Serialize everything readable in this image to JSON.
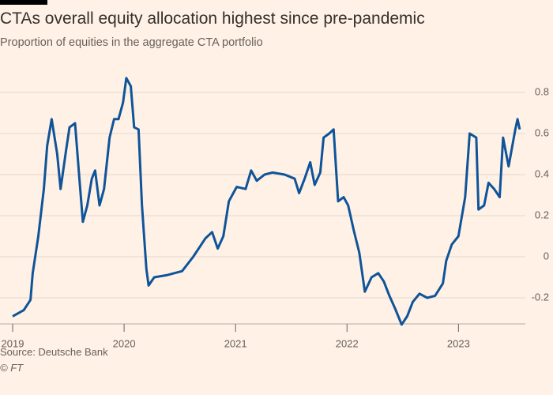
{
  "chart_data": {
    "type": "line",
    "title": "CTAs overall equity allocation highest since pre-pandemic",
    "subtitle": "Proportion of equities in the aggregate CTA portfolio",
    "source": "Source: Deutsche Bank",
    "credit": "© FT",
    "color": "#0f5499",
    "grid": true,
    "x": [
      2019.0,
      2019.1,
      2019.16,
      2019.18,
      2019.23,
      2019.28,
      2019.31,
      2019.35,
      2019.4,
      2019.43,
      2019.48,
      2019.51,
      2019.56,
      2019.6,
      2019.63,
      2019.67,
      2019.71,
      2019.74,
      2019.78,
      2019.82,
      2019.87,
      2019.91,
      2019.95,
      2019.99,
      2020.02,
      2020.06,
      2020.09,
      2020.13,
      2020.16,
      2020.2,
      2020.22,
      2020.27,
      2020.38,
      2020.52,
      2020.62,
      2020.73,
      2020.79,
      2020.84,
      2020.89,
      2020.94,
      2021.01,
      2021.09,
      2021.14,
      2021.19,
      2021.26,
      2021.33,
      2021.44,
      2021.53,
      2021.57,
      2021.62,
      2021.67,
      2021.71,
      2021.76,
      2021.79,
      2021.84,
      2021.88,
      2021.9,
      2021.92,
      2021.97,
      2022.01,
      2022.06,
      2022.11,
      2022.16,
      2022.22,
      2022.28,
      2022.33,
      2022.38,
      2022.43,
      2022.49,
      2022.54,
      2022.59,
      2022.65,
      2022.72,
      2022.79,
      2022.86,
      2022.89,
      2022.94,
      2023.0,
      2023.06,
      2023.1,
      2023.13,
      2023.16,
      2023.18,
      2023.23,
      2023.27,
      2023.32,
      2023.37,
      2023.4,
      2023.45,
      2023.51,
      2023.53,
      2023.55
    ],
    "values": [
      -0.29,
      -0.26,
      -0.21,
      -0.08,
      0.1,
      0.33,
      0.54,
      0.67,
      0.5,
      0.33,
      0.52,
      0.63,
      0.65,
      0.37,
      0.17,
      0.25,
      0.38,
      0.42,
      0.25,
      0.33,
      0.58,
      0.67,
      0.67,
      0.75,
      0.87,
      0.83,
      0.63,
      0.62,
      0.25,
      -0.06,
      -0.14,
      -0.1,
      -0.09,
      -0.07,
      0.0,
      0.09,
      0.12,
      0.04,
      0.1,
      0.27,
      0.34,
      0.33,
      0.42,
      0.37,
      0.4,
      0.41,
      0.4,
      0.38,
      0.31,
      0.38,
      0.46,
      0.35,
      0.41,
      0.58,
      0.6,
      0.62,
      0.44,
      0.27,
      0.29,
      0.25,
      0.13,
      0.02,
      -0.17,
      -0.1,
      -0.08,
      -0.12,
      -0.19,
      -0.25,
      -0.33,
      -0.29,
      -0.22,
      -0.18,
      -0.2,
      -0.19,
      -0.13,
      -0.02,
      0.06,
      0.1,
      0.29,
      0.6,
      0.59,
      0.58,
      0.23,
      0.25,
      0.36,
      0.33,
      0.29,
      0.58,
      0.44,
      0.62,
      0.67,
      0.62
    ],
    "xlim": [
      2019,
      2023.6
    ],
    "xticks": [
      2019,
      2020,
      2021,
      2022,
      2023
    ],
    "ylim": [
      -0.35,
      0.9
    ],
    "yticks": [
      -0.2,
      0,
      0.2,
      0.4,
      0.6,
      0.8
    ]
  }
}
